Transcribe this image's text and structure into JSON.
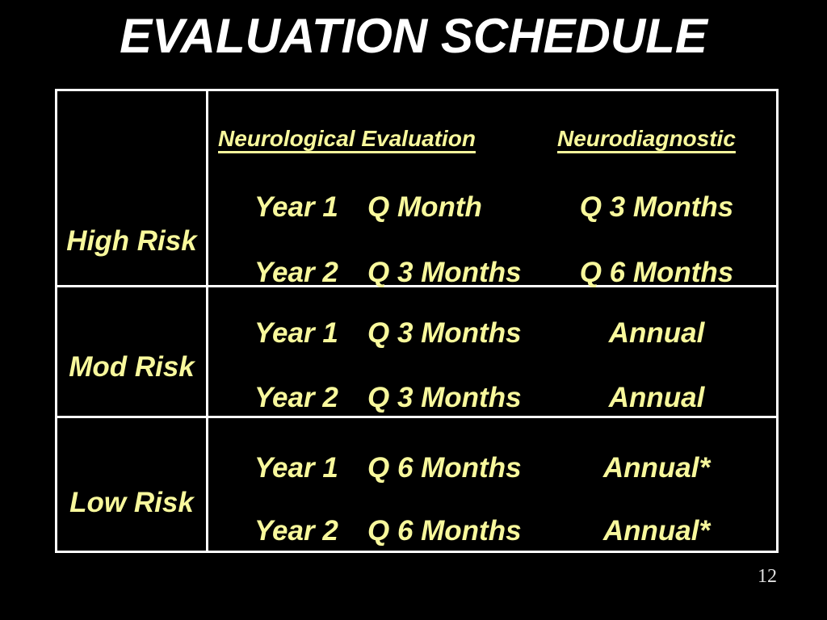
{
  "slide": {
    "title": "EVALUATION SCHEDULE",
    "page_number": "12"
  },
  "colors": {
    "background": "#000000",
    "title_text": "#FFFFFF",
    "table_text": "#F8F89C",
    "table_border": "#FFFFFF",
    "page_number_text": "#E0E0E0"
  },
  "table": {
    "headers": {
      "evaluation": "Neurological Evaluation",
      "diagnostic": "Neurodiagnostic"
    },
    "rows": [
      {
        "risk": "High Risk",
        "schedule": [
          {
            "year": "Year 1",
            "evaluation": "Q Month",
            "diagnostic": "Q 3 Months"
          },
          {
            "year": "Year 2",
            "evaluation": "Q 3 Months",
            "diagnostic": "Q 6 Months"
          }
        ]
      },
      {
        "risk": "Mod Risk",
        "schedule": [
          {
            "year": "Year 1",
            "evaluation": "Q 3 Months",
            "diagnostic": "Annual"
          },
          {
            "year": "Year 2",
            "evaluation": "Q 3 Months",
            "diagnostic": "Annual"
          }
        ]
      },
      {
        "risk": "Low Risk",
        "schedule": [
          {
            "year": "Year 1",
            "evaluation": "Q 6 Months",
            "diagnostic": "Annual*"
          },
          {
            "year": "Year 2",
            "evaluation": "Q 6 Months",
            "diagnostic": "Annual*"
          }
        ]
      }
    ]
  }
}
